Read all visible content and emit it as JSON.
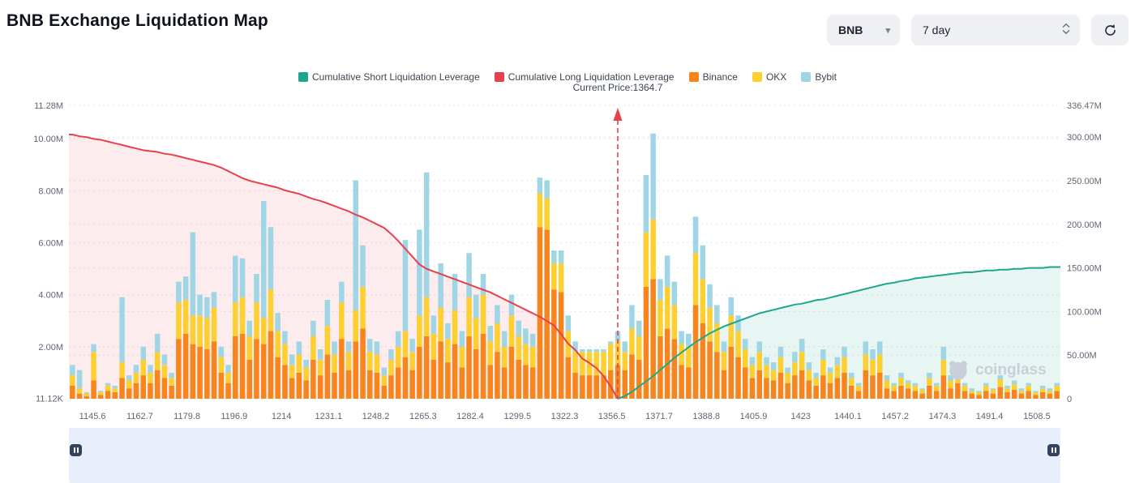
{
  "header": {
    "title": "BNB Exchange Liquidation Map",
    "symbol_select": {
      "value": "BNB"
    },
    "period_select": {
      "value": "7 day"
    }
  },
  "watermark_text": "coinglass",
  "chart_data": {
    "type": "bar",
    "title": "BNB Exchange Liquidation Map",
    "current_price": {
      "label": "Current Price:1364.7",
      "value": 1364.7,
      "index": 77
    },
    "legend": [
      {
        "label": "Cumulative Short Liquidation Leverage",
        "color": "#1ea78c"
      },
      {
        "label": "Cumulative Long Liquidation Leverage",
        "color": "#e8404f"
      },
      {
        "label": "Binance",
        "color": "#f8841d"
      },
      {
        "label": "OKX",
        "color": "#fdcf30"
      },
      {
        "label": "Bybit",
        "color": "#9fd5e4"
      }
    ],
    "bar_series": [
      "Binance",
      "OKX",
      "Bybit"
    ],
    "bar_colors": [
      "#f8841d",
      "#fdcf30",
      "#9fd5e4"
    ],
    "left_axis": {
      "unit": "M",
      "max": 11.28,
      "labels": [
        "11.28M",
        "10.00M",
        "8.00M",
        "6.00M",
        "4.00M",
        "2.00M",
        "11.12K"
      ],
      "values": [
        11.28,
        10,
        8,
        6,
        4,
        2,
        0.01112
      ]
    },
    "right_axis": {
      "unit": "M",
      "max": 336.47,
      "labels": [
        "336.47M",
        "300.00M",
        "250.00M",
        "200.00M",
        "150.00M",
        "100.00M",
        "50.00M",
        "0"
      ],
      "values": [
        336.47,
        300,
        250,
        200,
        150,
        100,
        50,
        0
      ]
    },
    "x_tick_labels": [
      "1145.6",
      "1162.7",
      "1179.8",
      "1196.9",
      "1214",
      "1231.1",
      "1248.2",
      "1265.3",
      "1282.4",
      "1299.5",
      "1322.3",
      "1356.5",
      "1371.7",
      "1388.8",
      "1405.9",
      "1423",
      "1440.1",
      "1457.2",
      "1474.3",
      "1491.4",
      "1508.5"
    ],
    "bars": [
      [
        0.5,
        0.4,
        0.4
      ],
      [
        0.2,
        0.2,
        0.7
      ],
      [
        0.1,
        0.1,
        0.05
      ],
      [
        0.7,
        1.1,
        0.3
      ],
      [
        0.15,
        0.1,
        0.05
      ],
      [
        0.3,
        0.2,
        0.1
      ],
      [
        0.25,
        0.15,
        0.1
      ],
      [
        0.8,
        0.6,
        2.5
      ],
      [
        0.4,
        0.3,
        0.2
      ],
      [
        0.6,
        0.4,
        0.3
      ],
      [
        0.9,
        0.6,
        0.5
      ],
      [
        0.6,
        0.4,
        0.3
      ],
      [
        1.1,
        0.7,
        0.7
      ],
      [
        0.8,
        0.5,
        0.4
      ],
      [
        0.5,
        0.3,
        0.2
      ],
      [
        2.3,
        1.4,
        0.8
      ],
      [
        2.5,
        1.3,
        0.9
      ],
      [
        2.1,
        1.1,
        3.2
      ],
      [
        2.0,
        1.2,
        0.8
      ],
      [
        1.9,
        1.2,
        0.8
      ],
      [
        2.2,
        1.3,
        0.6
      ],
      [
        1.0,
        0.6,
        0.4
      ],
      [
        0.6,
        0.4,
        0.3
      ],
      [
        2.4,
        1.3,
        1.8
      ],
      [
        2.5,
        1.4,
        1.5
      ],
      [
        1.5,
        0.9,
        0.6
      ],
      [
        2.3,
        1.4,
        1.1
      ],
      [
        2.1,
        1.0,
        4.5
      ],
      [
        2.6,
        1.6,
        2.4
      ],
      [
        1.6,
        1.0,
        0.7
      ],
      [
        1.3,
        0.8,
        0.5
      ],
      [
        0.8,
        0.5,
        0.4
      ],
      [
        1.0,
        0.7,
        0.5
      ],
      [
        0.7,
        0.5,
        0.3
      ],
      [
        1.5,
        0.9,
        0.6
      ],
      [
        0.9,
        0.6,
        0.4
      ],
      [
        1.7,
        1.1,
        1.0
      ],
      [
        1.0,
        0.7,
        0.5
      ],
      [
        2.3,
        1.4,
        0.8
      ],
      [
        1.1,
        0.7,
        0.4
      ],
      [
        2.2,
        1.2,
        5.0
      ],
      [
        2.7,
        1.6,
        1.6
      ],
      [
        1.1,
        0.7,
        0.5
      ],
      [
        1.0,
        0.7,
        0.5
      ],
      [
        0.5,
        0.4,
        0.3
      ],
      [
        0.9,
        0.6,
        0.4
      ],
      [
        1.2,
        0.8,
        0.6
      ],
      [
        1.6,
        1.0,
        3.5
      ],
      [
        1.1,
        0.7,
        0.5
      ],
      [
        2.0,
        1.2,
        3.3
      ],
      [
        2.4,
        1.5,
        4.8
      ],
      [
        1.5,
        1.0,
        0.7
      ],
      [
        2.2,
        1.3,
        1.7
      ],
      [
        1.4,
        0.9,
        0.6
      ],
      [
        2.1,
        1.3,
        1.4
      ],
      [
        1.2,
        0.8,
        0.6
      ],
      [
        2.4,
        1.5,
        1.7
      ],
      [
        1.9,
        1.2,
        0.9
      ],
      [
        2.5,
        1.5,
        0.8
      ],
      [
        1.3,
        0.9,
        0.6
      ],
      [
        1.8,
        1.1,
        0.7
      ],
      [
        1.2,
        0.8,
        0.6
      ],
      [
        2.0,
        1.2,
        0.8
      ],
      [
        1.5,
        0.9,
        0.6
      ],
      [
        1.3,
        0.8,
        0.6
      ],
      [
        1.2,
        0.8,
        0.5
      ],
      [
        6.6,
        1.3,
        0.6
      ],
      [
        6.5,
        1.2,
        0.7
      ],
      [
        4.2,
        1.0,
        0.5
      ],
      [
        4.1,
        1.1,
        0.5
      ],
      [
        1.6,
        1.0,
        0.6
      ],
      [
        1.0,
        0.8,
        0.4
      ],
      [
        0.9,
        0.9,
        0.1
      ],
      [
        0.9,
        0.9,
        0.1
      ],
      [
        0.9,
        0.9,
        0.1
      ],
      [
        0.9,
        0.9,
        0.1
      ],
      [
        1.1,
        1.0,
        0.1
      ],
      [
        1.3,
        0.9,
        0.4
      ],
      [
        1.1,
        0.7,
        0.4
      ],
      [
        1.7,
        1.0,
        0.9
      ],
      [
        1.5,
        0.9,
        0.6
      ],
      [
        4.3,
        2.1,
        2.2
      ],
      [
        4.6,
        2.3,
        3.3
      ],
      [
        2.4,
        1.4,
        0.8
      ],
      [
        2.7,
        1.6,
        1.2
      ],
      [
        2.3,
        1.3,
        0.9
      ],
      [
        1.3,
        0.8,
        0.5
      ],
      [
        1.2,
        0.8,
        0.5
      ],
      [
        3.6,
        2.0,
        1.4
      ],
      [
        2.9,
        1.7,
        1.3
      ],
      [
        2.2,
        1.3,
        0.9
      ],
      [
        1.8,
        1.1,
        0.7
      ],
      [
        1.1,
        0.7,
        0.4
      ],
      [
        2.0,
        1.2,
        0.7
      ],
      [
        1.6,
        1.0,
        0.6
      ],
      [
        1.2,
        0.7,
        0.4
      ],
      [
        0.8,
        0.5,
        0.3
      ],
      [
        1.1,
        0.7,
        0.4
      ],
      [
        0.8,
        0.5,
        0.3
      ],
      [
        0.7,
        0.4,
        0.3
      ],
      [
        1.0,
        0.6,
        0.4
      ],
      [
        0.6,
        0.4,
        0.2
      ],
      [
        0.9,
        0.5,
        0.4
      ],
      [
        1.1,
        0.7,
        0.5
      ],
      [
        0.7,
        0.4,
        0.3
      ],
      [
        0.5,
        0.3,
        0.2
      ],
      [
        0.9,
        0.6,
        0.4
      ],
      [
        0.6,
        0.4,
        0.2
      ],
      [
        0.8,
        0.5,
        0.3
      ],
      [
        1.0,
        0.6,
        0.4
      ],
      [
        0.5,
        0.3,
        0.2
      ],
      [
        0.3,
        0.2,
        0.1
      ],
      [
        1.1,
        0.6,
        0.5
      ],
      [
        0.9,
        0.6,
        0.4
      ],
      [
        1.0,
        0.7,
        0.5
      ],
      [
        0.4,
        0.3,
        0.2
      ],
      [
        0.3,
        0.2,
        0.1
      ],
      [
        0.5,
        0.3,
        0.2
      ],
      [
        0.4,
        0.2,
        0.1
      ],
      [
        0.3,
        0.2,
        0.1
      ],
      [
        0.2,
        0.15,
        0.05
      ],
      [
        0.5,
        0.3,
        0.2
      ],
      [
        0.3,
        0.2,
        0.1
      ],
      [
        0.9,
        0.6,
        0.5
      ],
      [
        0.4,
        0.3,
        0.2
      ],
      [
        0.6,
        0.4,
        0.2
      ],
      [
        0.3,
        0.2,
        0.1
      ],
      [
        0.2,
        0.1,
        0.1
      ],
      [
        0.15,
        0.1,
        0.05
      ],
      [
        0.3,
        0.2,
        0.1
      ],
      [
        0.2,
        0.15,
        0.05
      ],
      [
        0.45,
        0.3,
        0.15
      ],
      [
        0.25,
        0.15,
        0.1
      ],
      [
        0.35,
        0.2,
        0.15
      ],
      [
        0.2,
        0.1,
        0.1
      ],
      [
        0.3,
        0.2,
        0.1
      ],
      [
        0.15,
        0.1,
        0.05
      ],
      [
        0.25,
        0.15,
        0.1
      ],
      [
        0.2,
        0.1,
        0.1
      ],
      [
        0.3,
        0.2,
        0.1
      ]
    ],
    "long_line": {
      "name": "Cumulative Long Liquidation Leverage",
      "color": "#e8404f",
      "fill": "rgba(232,64,79,0.10)",
      "values": [
        303,
        301,
        300,
        298,
        297,
        295,
        293,
        291,
        289,
        287,
        285,
        284,
        283,
        281,
        280,
        278,
        276,
        274,
        272,
        270,
        268,
        265,
        261,
        257,
        253,
        250,
        248,
        246,
        244,
        242,
        239,
        237,
        235,
        232,
        229,
        227,
        224,
        221,
        218,
        215,
        211,
        208,
        204,
        200,
        196,
        189,
        181,
        172,
        163,
        154,
        149,
        146,
        143,
        140,
        137,
        134,
        131,
        128,
        125,
        122,
        118,
        114,
        110,
        106,
        102,
        98,
        94,
        89,
        84,
        74,
        63,
        56,
        46,
        41,
        35,
        26,
        14,
        0
      ]
    },
    "short_line": {
      "name": "Cumulative Short Liquidation Leverage",
      "color": "#1ea78c",
      "fill": "rgba(30,167,140,0.10)",
      "start_index": 77,
      "values": [
        0,
        3,
        8,
        14,
        20,
        26,
        33,
        40,
        47,
        53,
        59,
        65,
        70,
        75,
        79,
        83,
        86,
        89,
        92,
        95,
        98,
        100,
        102,
        104,
        106,
        108,
        109,
        111,
        113,
        114,
        116,
        118,
        120,
        122,
        124,
        126,
        128,
        130,
        132,
        133,
        135,
        136,
        138,
        139,
        140,
        141,
        142,
        143,
        144,
        145,
        145,
        146,
        147,
        147,
        148,
        148,
        149,
        149,
        150,
        150,
        150,
        151,
        151
      ]
    }
  }
}
